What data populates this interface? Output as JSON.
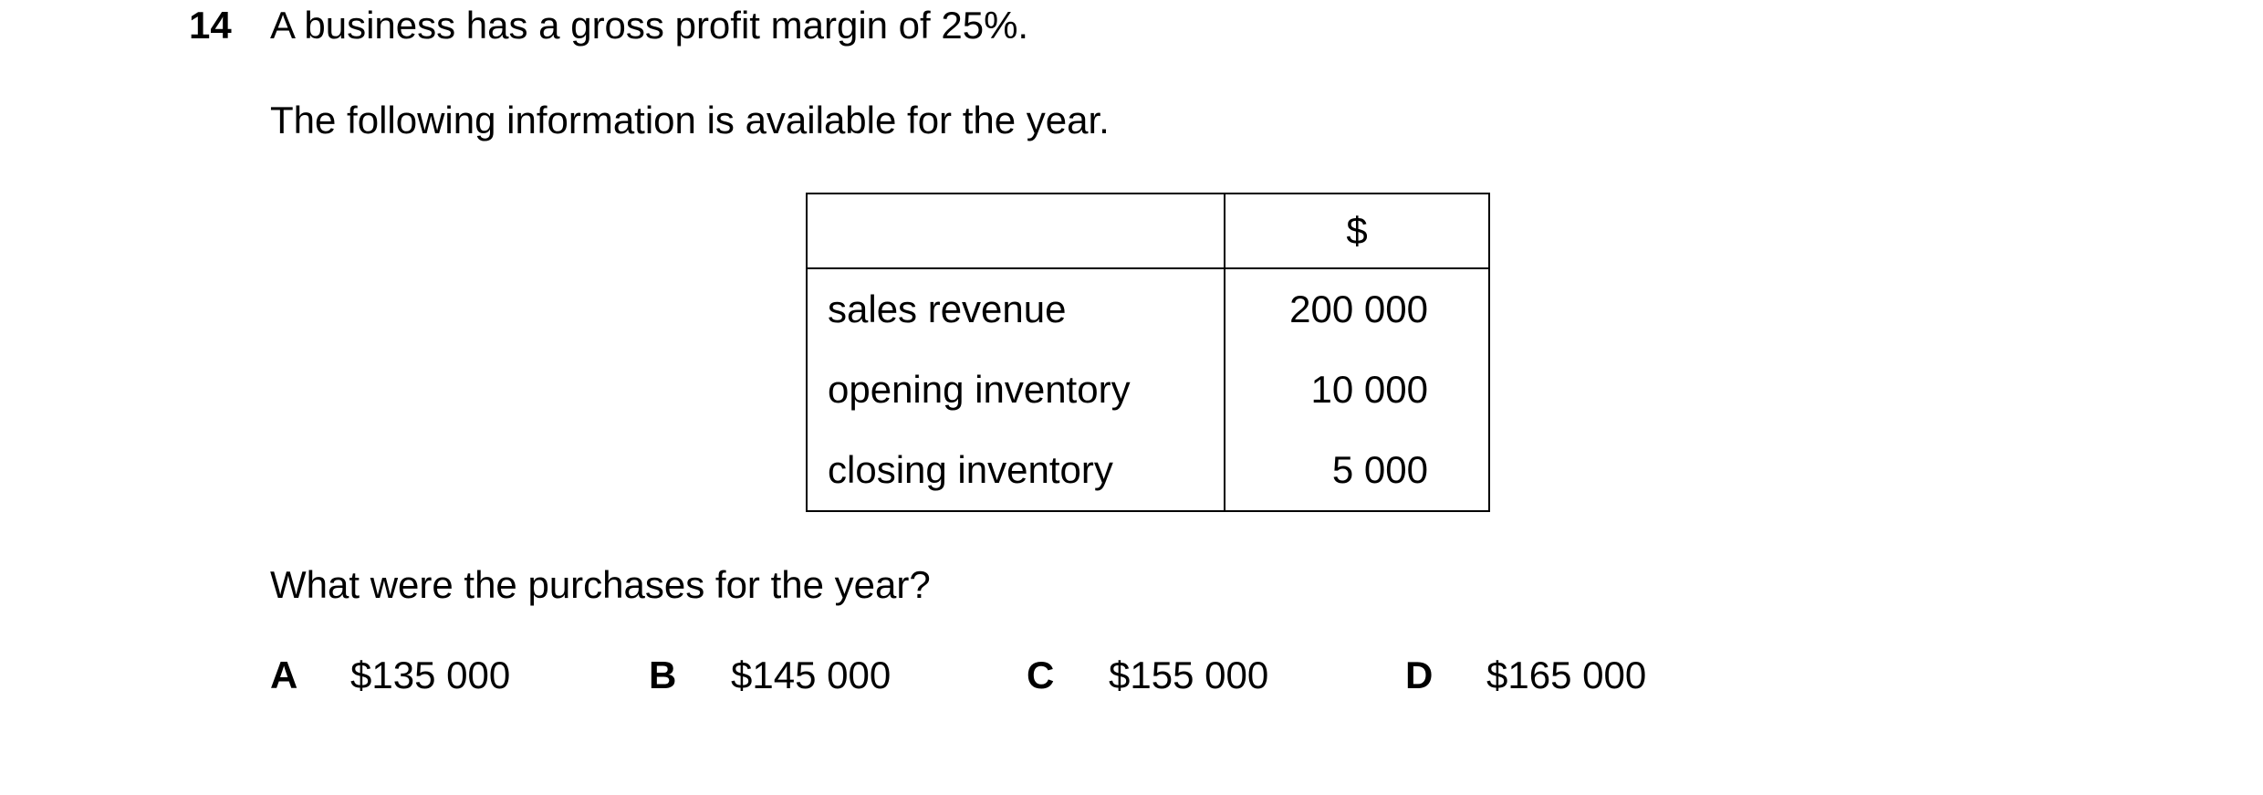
{
  "question": {
    "number": "14",
    "stem_line_1": "A business has a gross profit margin of 25%.",
    "stem_line_2": "The following information is available for the year.",
    "prompt": "What were the purchases for the year?"
  },
  "table": {
    "header": {
      "label": "",
      "currency": "$"
    },
    "rows": [
      {
        "label": "sales revenue",
        "value": "200 000"
      },
      {
        "label": "opening inventory",
        "value": "10 000"
      },
      {
        "label": "closing inventory",
        "value": "5 000"
      }
    ]
  },
  "options": [
    {
      "letter": "A",
      "value": "$135 000"
    },
    {
      "letter": "B",
      "value": "$145 000"
    },
    {
      "letter": "C",
      "value": "$155 000"
    },
    {
      "letter": "D",
      "value": "$165 000"
    }
  ]
}
